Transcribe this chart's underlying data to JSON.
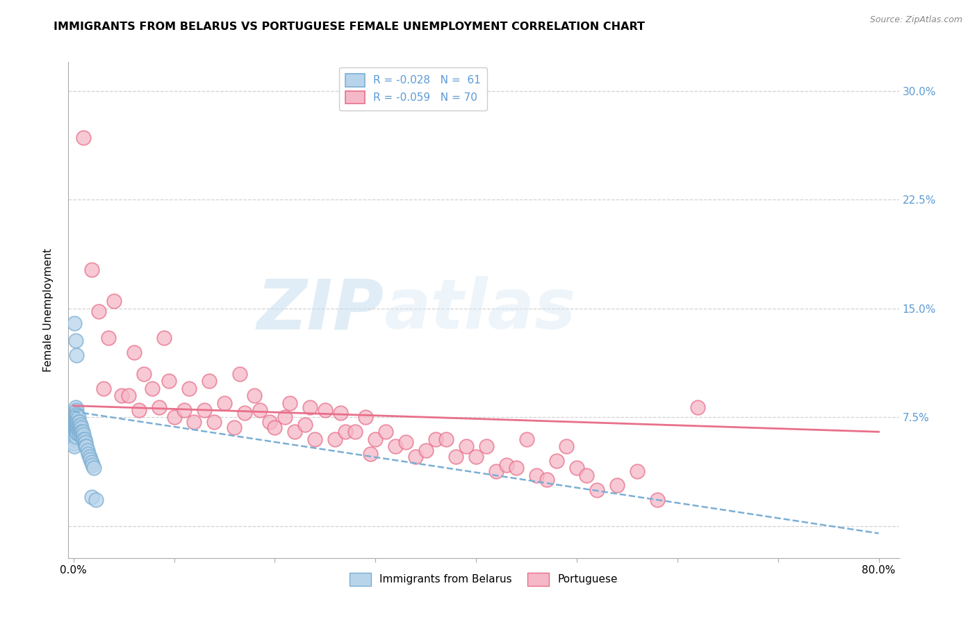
{
  "title": "IMMIGRANTS FROM BELARUS VS PORTUGUESE FEMALE UNEMPLOYMENT CORRELATION CHART",
  "source": "Source: ZipAtlas.com",
  "ylabel": "Female Unemployment",
  "xlim": [
    -0.005,
    0.82
  ],
  "ylim": [
    -0.022,
    0.32
  ],
  "yticks": [
    0.0,
    0.075,
    0.15,
    0.225,
    0.3
  ],
  "ytick_labels_right": [
    "",
    "7.5%",
    "15.0%",
    "22.5%",
    "30.0%"
  ],
  "xticks": [
    0.0,
    0.1,
    0.2,
    0.3,
    0.4,
    0.5,
    0.6,
    0.7,
    0.8
  ],
  "xtick_labels": [
    "0.0%",
    "",
    "",
    "",
    "",
    "",
    "",
    "",
    "80.0%"
  ],
  "legend_r1": "R = -0.028",
  "legend_n1": "N =  61",
  "legend_r2": "R = -0.059",
  "legend_n2": "N = 70",
  "color_belarus_fill": "#b8d4ea",
  "color_belarus_edge": "#7bafd4",
  "color_portuguese_fill": "#f5b8c8",
  "color_portuguese_edge": "#e8708a",
  "color_blue_line": "#7bafd4",
  "color_pink_line": "#e8708a",
  "color_right_axis": "#5b9bd5",
  "watermark_zip": "ZIP",
  "watermark_atlas": "atlas",
  "grid_color": "#cccccc",
  "bel_trendline": [
    0.0,
    0.079,
    0.8,
    -0.005
  ],
  "por_trendline": [
    0.0,
    0.083,
    0.8,
    0.065
  ],
  "belarus_x": [
    0.001,
    0.001,
    0.001,
    0.001,
    0.001,
    0.001,
    0.001,
    0.002,
    0.002,
    0.002,
    0.002,
    0.002,
    0.002,
    0.002,
    0.002,
    0.003,
    0.003,
    0.003,
    0.003,
    0.003,
    0.003,
    0.004,
    0.004,
    0.004,
    0.004,
    0.004,
    0.005,
    0.005,
    0.005,
    0.005,
    0.006,
    0.006,
    0.006,
    0.006,
    0.007,
    0.007,
    0.007,
    0.008,
    0.008,
    0.008,
    0.009,
    0.009,
    0.01,
    0.01,
    0.011,
    0.011,
    0.012,
    0.012,
    0.013,
    0.014,
    0.015,
    0.016,
    0.017,
    0.018,
    0.019,
    0.02,
    0.001,
    0.002,
    0.003,
    0.018,
    0.022
  ],
  "belarus_y": [
    0.07,
    0.068,
    0.065,
    0.063,
    0.06,
    0.057,
    0.055,
    0.082,
    0.078,
    0.075,
    0.072,
    0.07,
    0.068,
    0.065,
    0.062,
    0.08,
    0.077,
    0.073,
    0.07,
    0.067,
    0.065,
    0.076,
    0.073,
    0.07,
    0.067,
    0.064,
    0.075,
    0.072,
    0.069,
    0.066,
    0.072,
    0.069,
    0.066,
    0.063,
    0.07,
    0.067,
    0.064,
    0.068,
    0.065,
    0.062,
    0.065,
    0.062,
    0.063,
    0.06,
    0.06,
    0.057,
    0.058,
    0.055,
    0.055,
    0.052,
    0.05,
    0.048,
    0.046,
    0.044,
    0.042,
    0.04,
    0.14,
    0.128,
    0.118,
    0.02,
    0.018
  ],
  "portuguese_x": [
    0.01,
    0.018,
    0.025,
    0.03,
    0.035,
    0.04,
    0.048,
    0.055,
    0.06,
    0.065,
    0.07,
    0.078,
    0.085,
    0.09,
    0.095,
    0.1,
    0.11,
    0.115,
    0.12,
    0.13,
    0.135,
    0.14,
    0.15,
    0.16,
    0.165,
    0.17,
    0.18,
    0.185,
    0.195,
    0.2,
    0.21,
    0.215,
    0.22,
    0.23,
    0.235,
    0.24,
    0.25,
    0.26,
    0.265,
    0.27,
    0.28,
    0.29,
    0.295,
    0.3,
    0.31,
    0.32,
    0.33,
    0.34,
    0.35,
    0.36,
    0.37,
    0.38,
    0.39,
    0.4,
    0.41,
    0.42,
    0.43,
    0.44,
    0.45,
    0.46,
    0.47,
    0.48,
    0.49,
    0.5,
    0.51,
    0.52,
    0.54,
    0.56,
    0.58,
    0.62
  ],
  "portuguese_y": [
    0.268,
    0.177,
    0.148,
    0.095,
    0.13,
    0.155,
    0.09,
    0.09,
    0.12,
    0.08,
    0.105,
    0.095,
    0.082,
    0.13,
    0.1,
    0.075,
    0.08,
    0.095,
    0.072,
    0.08,
    0.1,
    0.072,
    0.085,
    0.068,
    0.105,
    0.078,
    0.09,
    0.08,
    0.072,
    0.068,
    0.075,
    0.085,
    0.065,
    0.07,
    0.082,
    0.06,
    0.08,
    0.06,
    0.078,
    0.065,
    0.065,
    0.075,
    0.05,
    0.06,
    0.065,
    0.055,
    0.058,
    0.048,
    0.052,
    0.06,
    0.06,
    0.048,
    0.055,
    0.048,
    0.055,
    0.038,
    0.042,
    0.04,
    0.06,
    0.035,
    0.032,
    0.045,
    0.055,
    0.04,
    0.035,
    0.025,
    0.028,
    0.038,
    0.018,
    0.082
  ]
}
